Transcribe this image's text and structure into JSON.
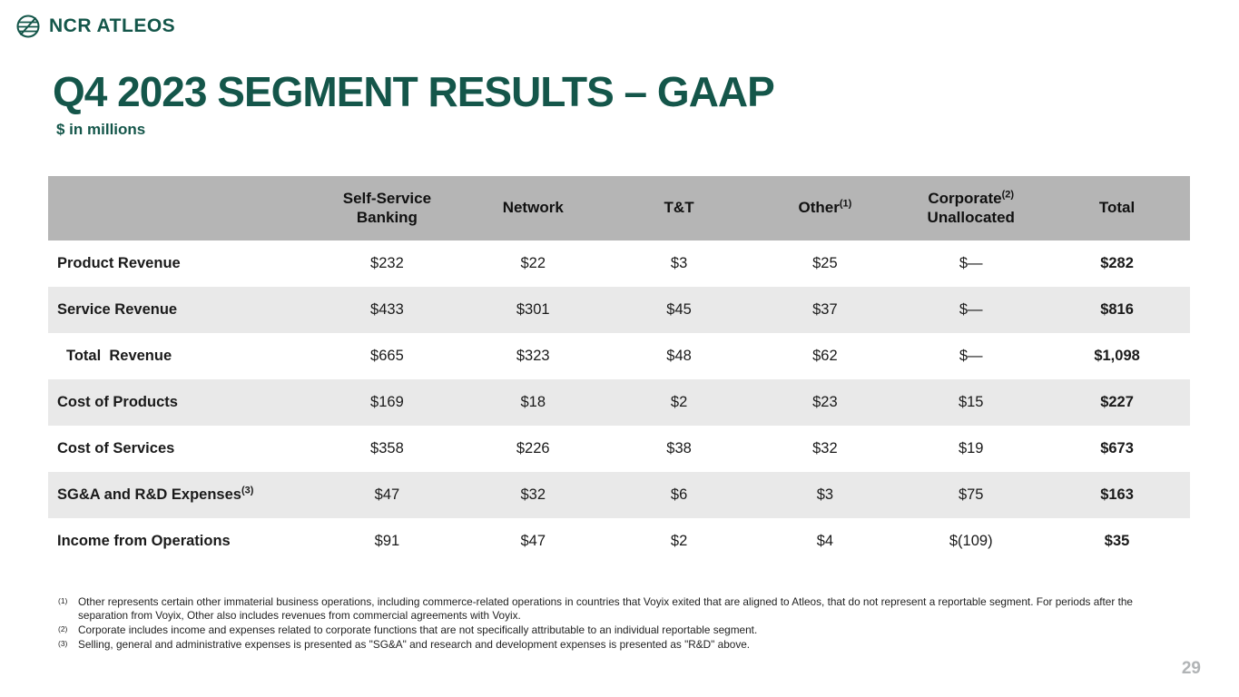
{
  "logo": {
    "text": "NCR ATLEOS",
    "icon": "globe-icon"
  },
  "title": "Q4 2023 SEGMENT RESULTS – GAAP",
  "subtitle": "$ in millions",
  "colors": {
    "brand_green": "#14564a",
    "header_gray": "#b5b5b5",
    "row_alt_gray": "#e9e9e9",
    "page_number_gray": "#b1b4b6"
  },
  "table": {
    "columns": [
      {
        "line1": "Self-Service",
        "sup": "",
        "line2": "Banking"
      },
      {
        "line1": "Network",
        "sup": "",
        "line2": ""
      },
      {
        "line1": "T&T",
        "sup": "",
        "line2": ""
      },
      {
        "line1": "Other",
        "sup": "(1)",
        "line2": ""
      },
      {
        "line1": "Corporate",
        "sup": "(2)",
        "line2": "Unallocated"
      },
      {
        "line1": "Total",
        "sup": "",
        "line2": ""
      }
    ],
    "rows": [
      {
        "label": "Product Revenue",
        "sup": "",
        "indent": false,
        "values": [
          "$232",
          "$22",
          "$3",
          "$25",
          "$—",
          "$282"
        ]
      },
      {
        "label": "Service Revenue",
        "sup": "",
        "indent": false,
        "values": [
          "$433",
          "$301",
          "$45",
          "$37",
          "$—",
          "$816"
        ]
      },
      {
        "label": "Total  Revenue",
        "sup": "",
        "indent": true,
        "values": [
          "$665",
          "$323",
          "$48",
          "$62",
          "$—",
          "$1,098"
        ]
      },
      {
        "label": "Cost of Products",
        "sup": "",
        "indent": false,
        "values": [
          "$169",
          "$18",
          "$2",
          "$23",
          "$15",
          "$227"
        ]
      },
      {
        "label": "Cost of Services",
        "sup": "",
        "indent": false,
        "values": [
          "$358",
          "$226",
          "$38",
          "$32",
          "$19",
          "$673"
        ]
      },
      {
        "label": "SG&A and R&D Expenses",
        "sup": "(3)",
        "indent": false,
        "values": [
          "$47",
          "$32",
          "$6",
          "$3",
          "$75",
          "$163"
        ]
      },
      {
        "label": "Income from Operations",
        "sup": "",
        "indent": false,
        "values": [
          "$91",
          "$47",
          "$2",
          "$4",
          "$(109)",
          "$35"
        ]
      }
    ]
  },
  "footnotes": [
    {
      "marker": "(1)",
      "text": "Other represents certain other immaterial business operations, including commerce-related operations in countries that Voyix exited that are aligned to Atleos, that do not represent a reportable segment. For periods after the separation from Voyix, Other also includes revenues from commercial agreements with Voyix."
    },
    {
      "marker": "(2)",
      "text": "Corporate includes income and expenses related to corporate functions that are not specifically attributable to an individual reportable segment."
    },
    {
      "marker": "(3)",
      "text": "Selling, general and administrative expenses is presented as \"SG&A\" and research and development expenses is presented as \"R&D\" above."
    }
  ],
  "page_number": "29"
}
